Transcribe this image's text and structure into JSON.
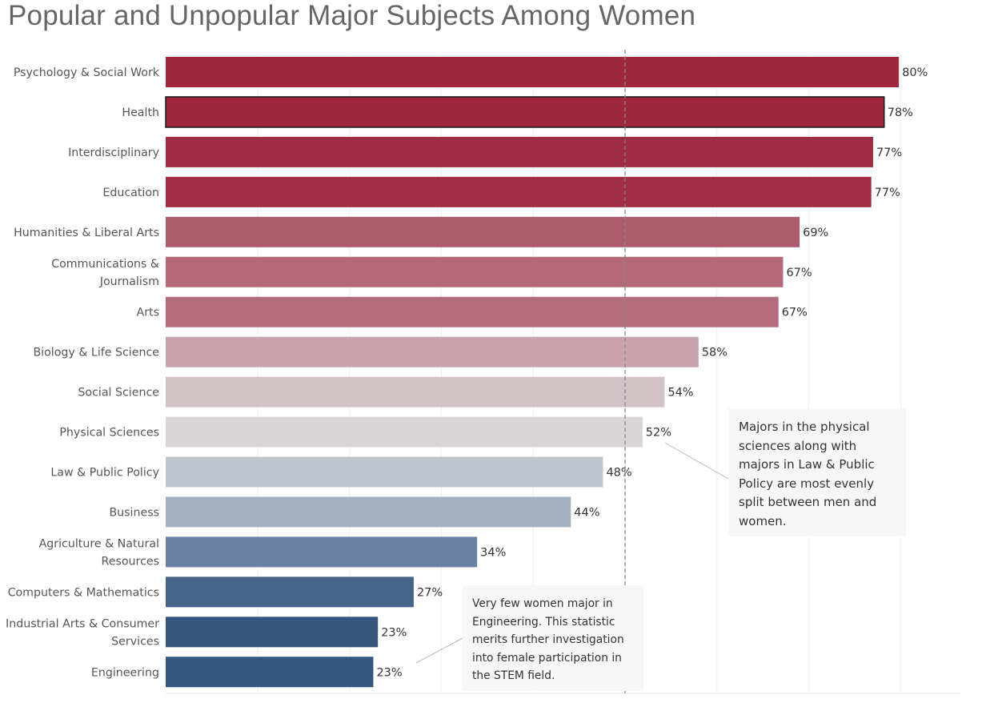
{
  "title": "Popular and Unpopular Major Subjects Among Women",
  "chart_data": {
    "type": "bar",
    "orientation": "horizontal",
    "title": "Popular and Unpopular Major Subjects Among Women",
    "xlabel": "",
    "ylabel": "",
    "xlim": [
      0,
      86
    ],
    "grid": true,
    "reference_line": 50,
    "categories": [
      [
        "Psychology & Social Work"
      ],
      [
        "Health"
      ],
      [
        "Interdisciplinary"
      ],
      [
        "Education"
      ],
      [
        "Humanities & Liberal Arts"
      ],
      [
        "Communications &",
        "Journalism"
      ],
      [
        "Arts"
      ],
      [
        "Biology & Life Science"
      ],
      [
        "Social Science"
      ],
      [
        "Physical Sciences"
      ],
      [
        "Law & Public Policy"
      ],
      [
        "Business"
      ],
      [
        "Agriculture & Natural",
        "Resources"
      ],
      [
        "Computers & Mathematics"
      ],
      [
        "Industrial Arts & Consumer",
        "Services"
      ],
      [
        "Engineering"
      ]
    ],
    "values": [
      79.8,
      78.2,
      77.0,
      76.8,
      69.0,
      67.2,
      66.7,
      58.0,
      54.3,
      51.9,
      47.6,
      44.1,
      33.9,
      27.0,
      23.1,
      22.6
    ],
    "value_labels": [
      "80%",
      "78%",
      "77%",
      "77%",
      "69%",
      "67%",
      "67%",
      "58%",
      "54%",
      "52%",
      "48%",
      "44%",
      "34%",
      "27%",
      "23%",
      "23%"
    ],
    "colors": [
      "#a0273b",
      "#a0273b",
      "#a12b42",
      "#a12c44",
      "#ad5b6d",
      "#b46879",
      "#b46b7c",
      "#c9a2ab",
      "#d3c2c5",
      "#d9d5d6",
      "#bec5cd",
      "#a4b1bf",
      "#6a82a2",
      "#476589",
      "#36557d",
      "#34557e"
    ],
    "highlighted": "Health"
  },
  "annotations": {
    "physical": "Majors in the physical sciences along with majors in Law & Public Policy are most evenly split between men and women.",
    "engineering": "Very few women major in Engineering. This statistic merits further investigation into female participation in the STEM field."
  }
}
